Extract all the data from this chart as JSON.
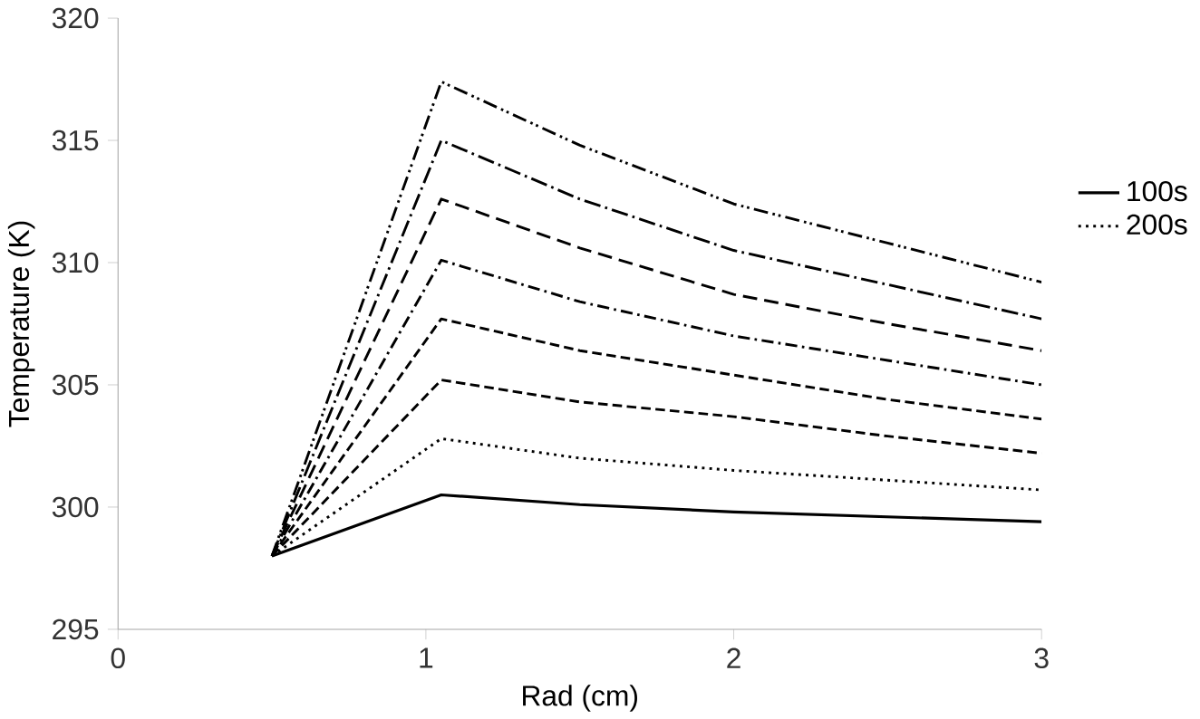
{
  "chart_data": {
    "type": "line",
    "xlabel": "Rad (cm)",
    "ylabel": "Temperature (K)",
    "xlim": [
      0,
      3
    ],
    "xticks": [
      0,
      1,
      2,
      3
    ],
    "ylim": [
      295,
      320
    ],
    "yticks": [
      295,
      300,
      305,
      310,
      315,
      320
    ],
    "grid": false,
    "legend": "right",
    "marker": "none",
    "series": [
      {
        "name": "100s",
        "color": "#000000",
        "line_style": "solid",
        "x": [
          0.5,
          1.05,
          1.5,
          2,
          2.5,
          3
        ],
        "values": [
          298,
          300.5,
          300.1,
          299.8,
          299.6,
          299.4
        ]
      },
      {
        "name": "200s",
        "color": "#000000",
        "line_style": "dotted",
        "x": [
          0.5,
          1.05,
          1.5,
          2,
          2.5,
          3
        ],
        "values": [
          298,
          302.8,
          302,
          301.5,
          301.1,
          300.7
        ]
      },
      {
        "color": "#000000",
        "line_style": "dashed",
        "x": [
          0.5,
          1.05,
          1.5,
          2,
          2.5,
          3
        ],
        "values": [
          298,
          305.2,
          304.3,
          303.7,
          302.9,
          302.2
        ]
      },
      {
        "color": "#000000",
        "line_style": "dashed",
        "x": [
          0.5,
          1.05,
          1.5,
          2,
          2.5,
          3
        ],
        "values": [
          298,
          307.7,
          306.4,
          305.4,
          304.4,
          303.6
        ]
      },
      {
        "color": "#000000",
        "line_style": "dashed",
        "x": [
          0.5,
          1.05,
          1.5,
          2,
          2.5,
          3
        ],
        "values": [
          298,
          310.1,
          308.4,
          307,
          306,
          305
        ]
      },
      {
        "color": "#000000",
        "line_style": "dashed",
        "x": [
          0.5,
          1.05,
          1.5,
          2,
          2.5,
          3
        ],
        "values": [
          298,
          312.6,
          310.6,
          308.7,
          307.5,
          306.4
        ]
      },
      {
        "color": "#000000",
        "line_style": "dashed",
        "x": [
          0.5,
          1.05,
          1.5,
          2,
          2.5,
          3
        ],
        "values": [
          298,
          315,
          312.6,
          310.5,
          309.1,
          307.7
        ]
      },
      {
        "color": "#000000",
        "line_style": "dashed",
        "x": [
          0.5,
          1.05,
          1.5,
          2,
          2.5,
          3
        ],
        "values": [
          298,
          317.4,
          314.8,
          312.4,
          310.8,
          309.2
        ]
      }
    ]
  }
}
